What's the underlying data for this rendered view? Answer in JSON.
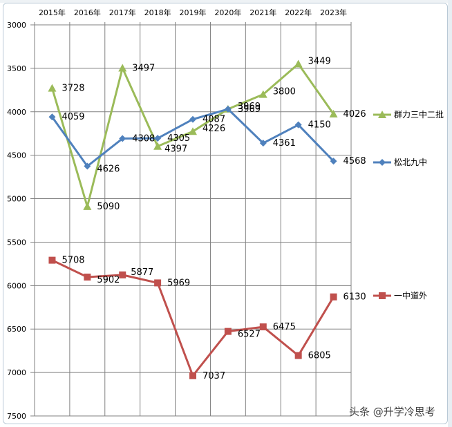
{
  "chart_data": {
    "type": "line",
    "title": "",
    "xlabel": "",
    "ylabel": "",
    "categories": [
      "2015年",
      "2016年",
      "2017年",
      "2018年",
      "2019年",
      "2020年",
      "2021年",
      "2022年",
      "2023年"
    ],
    "y_axis": {
      "reversed": true,
      "min": 3000,
      "max": 7500,
      "step": 500,
      "ticks": [
        "3000",
        "3500",
        "4000",
        "4500",
        "5000",
        "5500",
        "6000",
        "6500",
        "7000",
        "7500"
      ]
    },
    "grid": true,
    "legend_position": "right",
    "series": [
      {
        "name": "群力三中二批",
        "color": "#9bbb59",
        "marker": "triangle",
        "values": [
          3728,
          5090,
          3497,
          4397,
          4226,
          3969,
          3800,
          3449,
          4026
        ]
      },
      {
        "name": "松北九中",
        "color": "#4f81bd",
        "marker": "diamond",
        "values": [
          4059,
          4626,
          4308,
          4305,
          4087,
          3969,
          4361,
          4150,
          4568
        ]
      },
      {
        "name": "一中道外",
        "color": "#c0504d",
        "marker": "square",
        "values": [
          5708,
          5902,
          5877,
          5969,
          7037,
          6527,
          6475,
          6805,
          6130
        ]
      }
    ]
  },
  "watermark": "头条 @升学冷思考"
}
